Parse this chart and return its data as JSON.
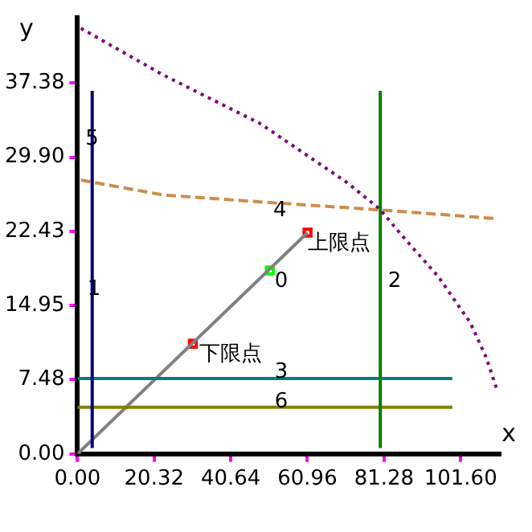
{
  "chart_data": {
    "type": "line",
    "xlabel": "x",
    "ylabel": "y",
    "xlim": [
      0,
      112
    ],
    "ylim": [
      0,
      44
    ],
    "xticks": [
      {
        "value": 0,
        "label": "0.00"
      },
      20.32,
      40.64,
      60.96,
      81.28,
      {
        "value": 101.6,
        "label": "101.60"
      }
    ],
    "yticks": [
      {
        "value": 0,
        "label": "0.00"
      },
      7.48,
      14.95,
      22.43,
      {
        "value": 29.9,
        "label": "29.90"
      },
      37.38
    ],
    "grid": false,
    "legend": false,
    "marker": "none",
    "line_style": "solid",
    "series": [
      {
        "color": "#000080",
        "x": [
          3.9,
          3.9
        ],
        "values": [
          0.6,
          36.6
        ]
      },
      {
        "color": "#800080",
        "line_style": "dotted",
        "x": [
          0.9,
          22.7,
          48.4,
          52.7,
          71.3,
          80.1,
          86.3,
          95.6,
          104.2,
          108.4,
          111.3
        ],
        "values": [
          42.9,
          38.2,
          33.3,
          32.2,
          27.4,
          24.7,
          21.9,
          17.9,
          13.2,
          9.7,
          6.4
        ]
      },
      {
        "color": "#cd8c4b",
        "line_style": "dashed",
        "x": [
          0.9,
          22.7,
          48.4,
          80.1,
          111.3
        ],
        "values": [
          27.6,
          26.1,
          25.4,
          24.6,
          23.7
        ]
      },
      {
        "color": "#008000",
        "x": [
          80.3,
          80.3
        ],
        "values": [
          0.6,
          36.6
        ]
      },
      {
        "color": "#008080",
        "x": [
          0,
          99.4
        ],
        "values": [
          7.6,
          7.6
        ]
      },
      {
        "color": "#808000",
        "x": [
          0,
          99.4
        ],
        "values": [
          4.7,
          4.7
        ]
      },
      {
        "color": "#808080",
        "x": [
          0,
          61
        ],
        "values": [
          0,
          22.3
        ]
      },
      {
        "type": "scatter",
        "marker": "square",
        "color": "#ff0000",
        "x": [
          30.6,
          61
        ],
        "values": [
          11.1,
          22.3
        ]
      },
      {
        "type": "scatter",
        "marker": "square",
        "color": "#00ff00",
        "x": [
          51
        ],
        "values": [
          18.5
        ]
      }
    ],
    "annotations": [
      {
        "text": "5",
        "x": 2.1,
        "y": 31.7
      },
      {
        "text": "1",
        "x": 2.6,
        "y": 16.6
      },
      {
        "text": "4",
        "x": 51.9,
        "y": 24.5
      },
      {
        "text": "0",
        "x": 52.3,
        "y": 17.4
      },
      {
        "text": "2",
        "x": 82.3,
        "y": 17.4
      },
      {
        "text": "3",
        "x": 52.3,
        "y": 8.2
      },
      {
        "text": "6",
        "x": 52.3,
        "y": 5.2
      },
      {
        "text": "上限点",
        "x": 61,
        "y": 21.2
      },
      {
        "text": "下限点",
        "x": 32.2,
        "y": 10
      }
    ]
  }
}
